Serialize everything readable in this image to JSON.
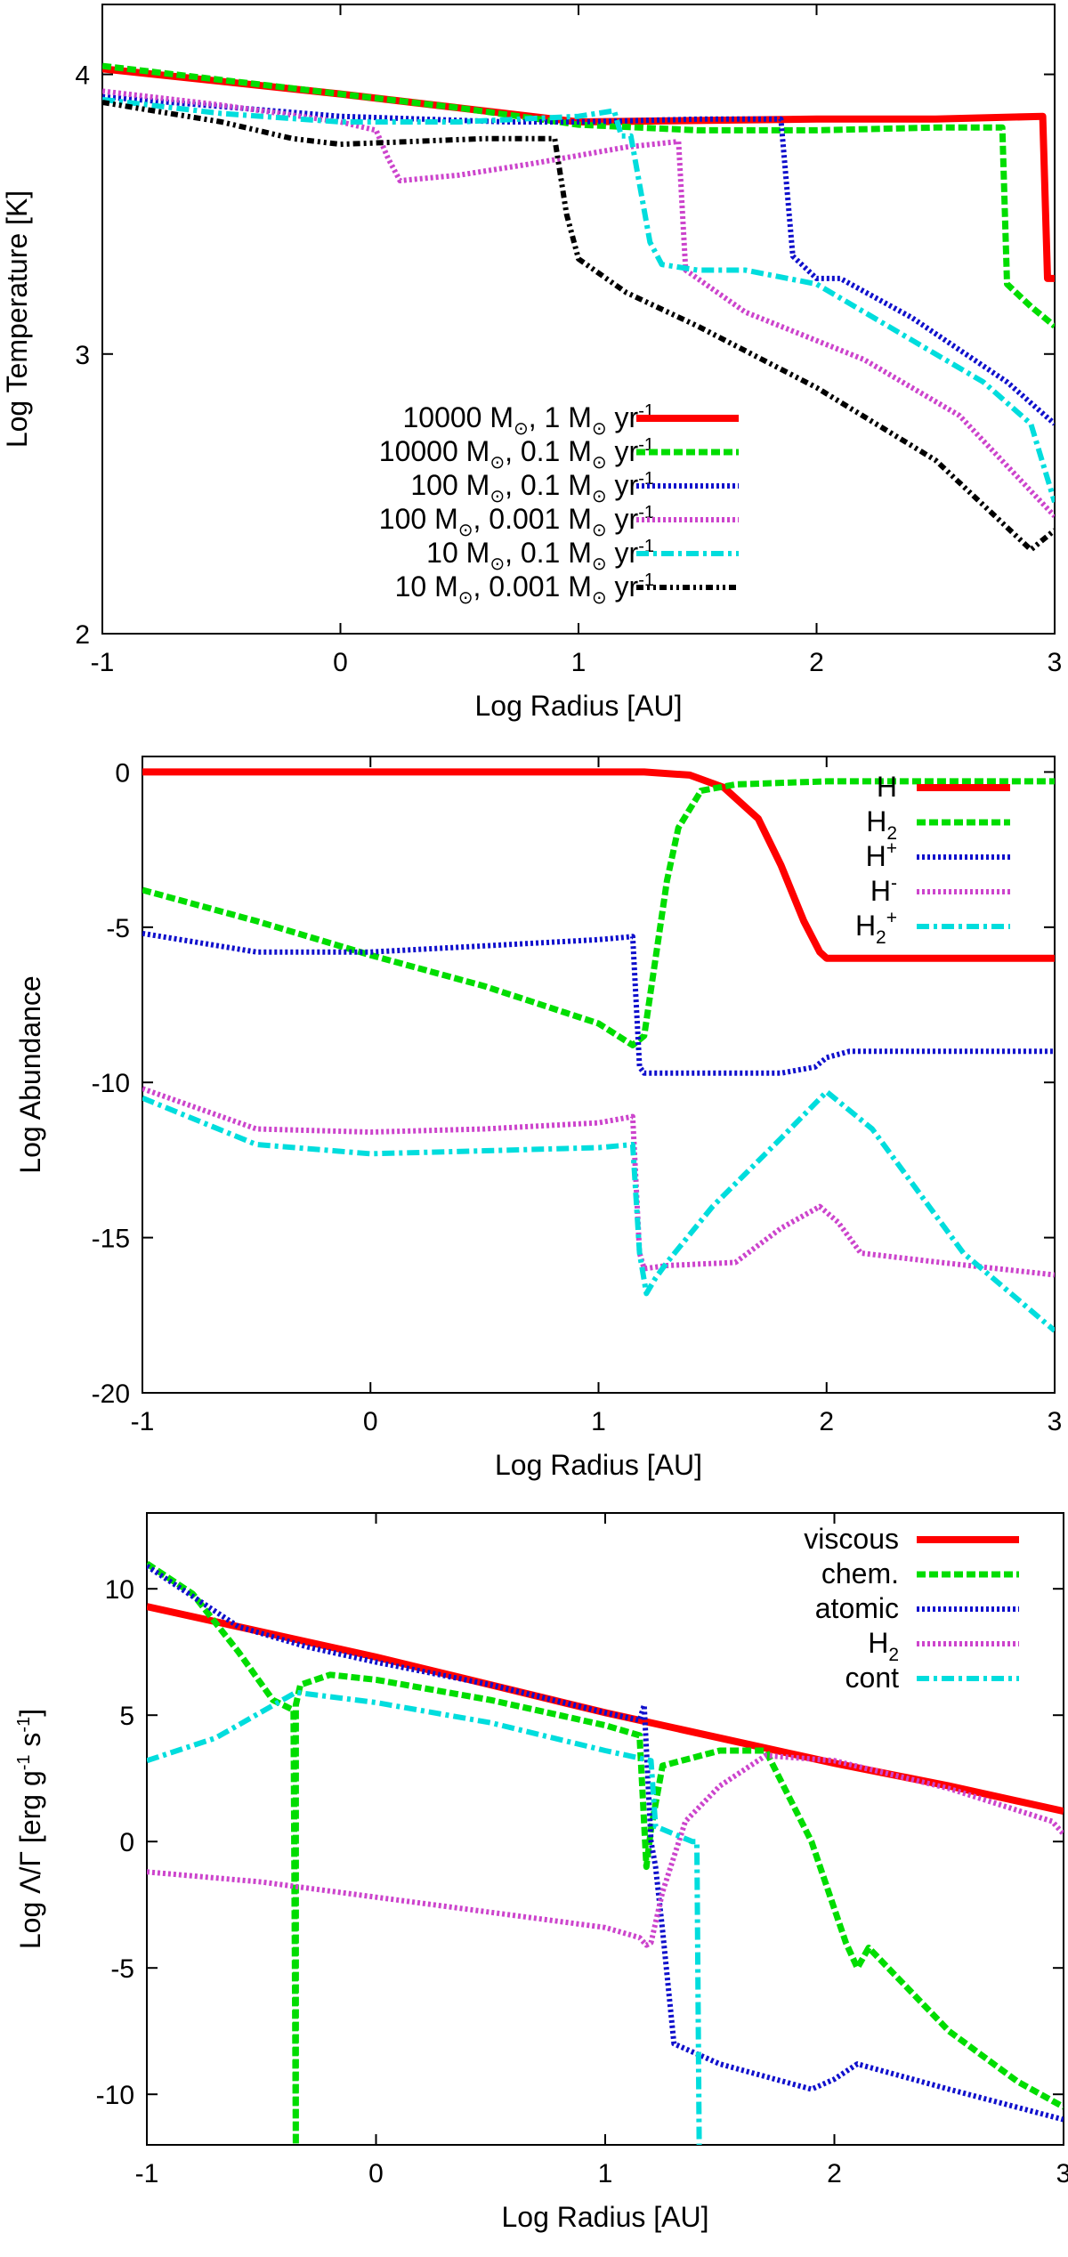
{
  "chart_data": [
    {
      "type": "line",
      "title": "",
      "xlabel": "Log Radius [AU]",
      "ylabel": "Log Temperature [K]",
      "xlim": [
        -1,
        3
      ],
      "ylim": [
        2,
        4.25
      ],
      "xticks": [
        -1,
        0,
        1,
        2,
        3
      ],
      "yticks": [
        2,
        3,
        4
      ],
      "grid": false,
      "legend_position": "bottom-center",
      "series": [
        {
          "name_main": "10000 M",
          "name_mid": ", 1 M",
          "name_tail": " yr",
          "name_sup": "-1",
          "color": "#ff0000",
          "style": "solid",
          "x": [
            -1,
            0,
            0.5,
            1,
            2,
            2.5,
            2.95,
            2.97,
            3
          ],
          "y": [
            4.02,
            3.93,
            3.88,
            3.83,
            3.84,
            3.84,
            3.85,
            3.27,
            3.27
          ]
        },
        {
          "name_main": "10000 M",
          "name_mid": ", 0.1 M",
          "name_tail": " yr",
          "name_sup": "-1",
          "color": "#00dd00",
          "style": "dashed",
          "x": [
            -1,
            -0.5,
            0,
            0.5,
            1,
            1.5,
            2,
            2.5,
            2.78,
            2.8,
            2.9,
            3
          ],
          "y": [
            4.03,
            3.98,
            3.93,
            3.88,
            3.82,
            3.8,
            3.8,
            3.81,
            3.81,
            3.25,
            3.17,
            3.1
          ]
        },
        {
          "name_main": "100 M",
          "name_mid": ", 0.1 M",
          "name_tail": " yr",
          "name_sup": "-1",
          "color": "#1010cc",
          "style": "dotted",
          "x": [
            -1,
            0,
            0.7,
            1,
            1.5,
            1.85,
            1.9,
            2,
            2.1,
            2.4,
            2.8,
            3
          ],
          "y": [
            3.92,
            3.85,
            3.83,
            3.83,
            3.84,
            3.84,
            3.35,
            3.27,
            3.27,
            3.13,
            2.9,
            2.75
          ]
        },
        {
          "name_main": "100 M",
          "name_mid": ", 0.001 M",
          "name_tail": " yr",
          "name_sup": "-1",
          "color": "#cc44cc",
          "style": "dotted",
          "x": [
            -1,
            -0.5,
            0,
            0.15,
            0.2,
            0.25,
            0.5,
            0.8,
            1,
            1.2,
            1.42,
            1.45,
            1.7,
            2.2,
            2.6,
            3
          ],
          "y": [
            3.94,
            3.89,
            3.83,
            3.8,
            3.7,
            3.62,
            3.64,
            3.68,
            3.71,
            3.74,
            3.76,
            3.3,
            3.15,
            2.98,
            2.78,
            2.42
          ]
        },
        {
          "name_main": "10 M",
          "name_mid": ", 0.1 M",
          "name_tail": " yr",
          "name_sup": "-1",
          "color": "#00dddd",
          "style": "dashdot",
          "x": [
            -1,
            -0.5,
            0,
            0.5,
            1,
            1.15,
            1.18,
            1.22,
            1.3,
            1.35,
            1.5,
            1.7,
            2,
            2.4,
            2.7,
            2.9,
            3
          ],
          "y": [
            3.91,
            3.86,
            3.83,
            3.83,
            3.85,
            3.87,
            3.78,
            3.78,
            3.4,
            3.32,
            3.3,
            3.3,
            3.25,
            3.05,
            2.9,
            2.75,
            2.47
          ]
        },
        {
          "name_main": "10 M",
          "name_mid": ", 0.001 M",
          "name_tail": " yr",
          "name_sup": "-1",
          "color": "#000000",
          "style": "dashdotdot",
          "x": [
            -1,
            -0.5,
            -0.2,
            0,
            0.3,
            0.6,
            0.9,
            0.95,
            1.0,
            1.2,
            1.5,
            2,
            2.5,
            2.9,
            3
          ],
          "y": [
            3.9,
            3.83,
            3.77,
            3.75,
            3.76,
            3.77,
            3.77,
            3.5,
            3.34,
            3.22,
            3.1,
            2.88,
            2.62,
            2.3,
            2.37
          ]
        }
      ]
    },
    {
      "type": "line",
      "title": "",
      "xlabel": "Log Radius [AU]",
      "ylabel": "Log Abundance",
      "xlim": [
        -1,
        3
      ],
      "ylim": [
        -20,
        0.5
      ],
      "xticks": [
        -1,
        0,
        1,
        2,
        3
      ],
      "yticks": [
        0,
        -5,
        -10,
        -15,
        -20
      ],
      "grid": false,
      "legend_position": "top-right",
      "series": [
        {
          "name_main": "H",
          "name_sub": "",
          "name_sup": "",
          "color": "#ff0000",
          "style": "solid",
          "x": [
            -1,
            0,
            1,
            1.2,
            1.4,
            1.55,
            1.7,
            1.8,
            1.9,
            1.97,
            2.0,
            2.5,
            3
          ],
          "y": [
            0,
            0,
            0,
            0,
            -0.1,
            -0.5,
            -1.5,
            -3,
            -4.8,
            -5.8,
            -6,
            -6,
            -6
          ]
        },
        {
          "name_main": "H",
          "name_sub": "2",
          "name_sup": "",
          "color": "#00dd00",
          "style": "dashed",
          "x": [
            -1,
            -0.5,
            0,
            0.5,
            1,
            1.15,
            1.2,
            1.25,
            1.3,
            1.35,
            1.45,
            1.6,
            2,
            2.5,
            3
          ],
          "y": [
            -3.8,
            -4.8,
            -5.9,
            -6.9,
            -8.1,
            -8.8,
            -8.5,
            -6,
            -3.5,
            -1.8,
            -0.6,
            -0.4,
            -0.3,
            -0.3,
            -0.3
          ]
        },
        {
          "name_main": "H",
          "name_sub": "",
          "name_sup": "+",
          "color": "#1010cc",
          "style": "dotted",
          "x": [
            -1,
            -0.5,
            0,
            0.5,
            1,
            1.15,
            1.18,
            1.2,
            1.3,
            1.5,
            1.8,
            1.95,
            2,
            2.1,
            2.5,
            3
          ],
          "y": [
            -5.2,
            -5.8,
            -5.8,
            -5.6,
            -5.4,
            -5.3,
            -9.5,
            -9.7,
            -9.7,
            -9.7,
            -9.7,
            -9.5,
            -9.2,
            -9,
            -9,
            -9
          ]
        },
        {
          "name_main": "H",
          "name_sub": "",
          "name_sup": "-",
          "color": "#cc44cc",
          "style": "dotted",
          "x": [
            -1,
            -0.5,
            0,
            0.5,
            1,
            1.15,
            1.18,
            1.2,
            1.3,
            1.6,
            1.8,
            1.97,
            2.05,
            2.15,
            2.5,
            3
          ],
          "y": [
            -10.2,
            -11.5,
            -11.6,
            -11.5,
            -11.3,
            -11.1,
            -15.5,
            -16,
            -15.9,
            -15.8,
            -14.7,
            -14,
            -14.5,
            -15.5,
            -15.8,
            -16.2
          ]
        },
        {
          "name_main": "H",
          "name_sub": "2",
          "name_sup": "+",
          "color": "#00dddd",
          "style": "dashdot",
          "x": [
            -1,
            -0.5,
            0,
            0.5,
            1,
            1.15,
            1.18,
            1.21,
            1.25,
            1.3,
            1.5,
            1.8,
            2.0,
            2.2,
            2.6,
            3
          ],
          "y": [
            -10.5,
            -12,
            -12.3,
            -12.2,
            -12.1,
            -12,
            -15.5,
            -16.8,
            -16.3,
            -15.8,
            -14,
            -11.8,
            -10.3,
            -11.5,
            -15.5,
            -18
          ]
        }
      ]
    },
    {
      "type": "line",
      "title": "",
      "xlabel": "Log Radius [AU]",
      "ylabel_main": "Log Λ/Γ [erg g",
      "ylabel_mid": " s",
      "ylabel_end": "]",
      "ylabel_sup": "-1",
      "xlim": [
        -1,
        3
      ],
      "ylim": [
        -12,
        13
      ],
      "xticks": [
        -1,
        0,
        1,
        2,
        3
      ],
      "yticks": [
        10,
        5,
        0,
        -5,
        -10
      ],
      "grid": false,
      "legend_position": "top-right",
      "series": [
        {
          "name_main": "viscous",
          "name_sub": "",
          "color": "#ff0000",
          "style": "solid",
          "x": [
            -1,
            -0.5,
            0,
            0.5,
            1,
            1.5,
            2,
            2.5,
            3
          ],
          "y": [
            9.3,
            8.3,
            7.3,
            6.2,
            5.1,
            4.1,
            3.1,
            2.2,
            1.2
          ]
        },
        {
          "name_main": "chem.",
          "name_sub": "",
          "color": "#00dd00",
          "style": "dashed",
          "x": [
            -1,
            -0.8,
            -0.6,
            -0.45,
            -0.36,
            -0.35,
            -0.35,
            -0.33,
            -0.2,
            0,
            0.5,
            1,
            1.15,
            1.18,
            1.2,
            1.25,
            1.5,
            1.7,
            1.9,
            2.05,
            2.1,
            2.15,
            2.5,
            2.8,
            3
          ],
          "y": [
            11,
            9.8,
            7.5,
            5.6,
            5.2,
            -12,
            5.4,
            6.2,
            6.6,
            6.4,
            5.6,
            4.6,
            4.2,
            -1,
            0.5,
            3,
            3.6,
            3.6,
            0,
            -4,
            -5,
            -4.2,
            -7.5,
            -9.5,
            -10.5
          ]
        },
        {
          "name_main": "atomic",
          "name_sub": "",
          "color": "#1010cc",
          "style": "dotted",
          "x": [
            -1,
            -0.6,
            -0.3,
            0,
            0.5,
            1,
            1.15,
            1.17,
            1.2,
            1.22,
            1.25,
            1.3,
            1.5,
            1.9,
            2.0,
            2.1,
            2.5,
            3
          ],
          "y": [
            10.9,
            8.5,
            7.7,
            7.1,
            6.2,
            5.1,
            4.8,
            5.4,
            0,
            -1,
            -3.5,
            -8,
            -8.8,
            -9.8,
            -9.4,
            -8.8,
            -9.8,
            -11
          ]
        },
        {
          "name_main": "H",
          "name_sub": "2",
          "color": "#cc44cc",
          "style": "dotted",
          "x": [
            -1,
            -0.5,
            0,
            0.5,
            1,
            1.15,
            1.18,
            1.2,
            1.25,
            1.35,
            1.5,
            1.7,
            2,
            2.5,
            2.95,
            3
          ],
          "y": [
            -1.2,
            -1.6,
            -2.2,
            -2.8,
            -3.4,
            -3.8,
            -4.1,
            -4,
            -2,
            0.8,
            2.2,
            3.4,
            3.2,
            2.1,
            0.8,
            0.3
          ]
        },
        {
          "name_main": "cont",
          "name_sub": "",
          "color": "#00dddd",
          "style": "dashdot",
          "x": [
            -1,
            -0.7,
            -0.35,
            0,
            0.5,
            1,
            1.2,
            1.22,
            1.3,
            1.38,
            1.4,
            1.41
          ],
          "y": [
            3.2,
            4.1,
            5.9,
            5.5,
            4.7,
            3.6,
            3.2,
            0.6,
            0.3,
            0,
            0,
            -12
          ]
        }
      ]
    }
  ]
}
